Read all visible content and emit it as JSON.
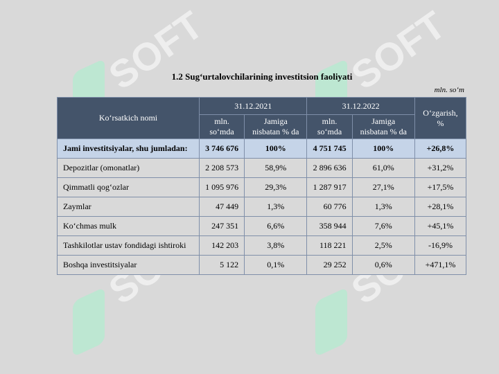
{
  "title": "1.2 Sug‘urtalovchilarining investitsion faoliyati",
  "unit": "mln. so‘m",
  "watermark": "SOFT",
  "table": {
    "header": {
      "name": "Ko‘rsatkich nomi",
      "date1": "31.12.2021",
      "date2": "31.12.2022",
      "change": "O‘zgarish, %",
      "amount": "mln. so‘mda",
      "share": "Jamiga nisbatan % da"
    },
    "rows": [
      [
        "Jami investitsiyalar, shu jumladan:",
        "3 746 676",
        "100%",
        "4 751 745",
        "100%",
        "+26,8%"
      ],
      [
        "Depozitlar (omonatlar)",
        "2 208 573",
        "58,9%",
        "2 896 636",
        "61,0%",
        "+31,2%"
      ],
      [
        "Qimmatli qog‘ozlar",
        "1 095 976",
        "29,3%",
        "1 287 917",
        "27,1%",
        "+17,5%"
      ],
      [
        "Zaymlar",
        "47 449",
        "1,3%",
        "60 776",
        "1,3%",
        "+28,1%"
      ],
      [
        "Ko‘chmas mulk",
        "247 351",
        "6,6%",
        "358 944",
        "7,6%",
        "+45,1%"
      ],
      [
        "Tashkilotlar ustav fondidagi ishtiroki",
        "142 203",
        "3,8%",
        "118 221",
        "2,5%",
        "-16,9%"
      ],
      [
        "Boshqa investitsiyalar",
        "5 122",
        "0,1%",
        "29 252",
        "0,6%",
        "+471,1%"
      ]
    ]
  }
}
